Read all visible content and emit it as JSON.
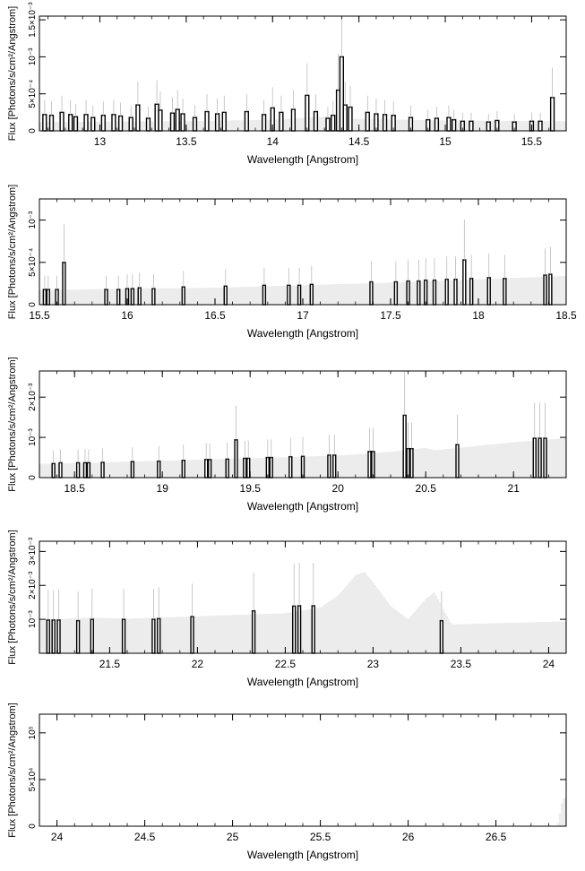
{
  "figure": {
    "xlabel": "Wavelength [Angstrom]",
    "ylabel": "Flux [Photons/s/cm²/Angstrom]"
  },
  "chart_data": [
    {
      "type": "bar",
      "xlabel": "Wavelength [Angstrom]",
      "ylabel": "Flux [Photons/s/cm²/Angstrom]",
      "xlim": [
        12.65,
        15.7
      ],
      "ylim": [
        0,
        0.00155
      ],
      "x_ticks": [
        {
          "v": 13,
          "label": "13"
        },
        {
          "v": 13.5,
          "label": "13.5"
        },
        {
          "v": 14,
          "label": "14"
        },
        {
          "v": 14.5,
          "label": "14.5"
        },
        {
          "v": 15,
          "label": "15"
        },
        {
          "v": 15.5,
          "label": "15.5"
        }
      ],
      "y_ticks": [
        {
          "v": 0,
          "label": "0"
        },
        {
          "v": 0.0005,
          "label": "5×10⁻⁴"
        },
        {
          "v": 0.001,
          "label": "10⁻³"
        },
        {
          "v": 0.0015,
          "label": "1.5×10⁻³"
        }
      ],
      "model": {
        "name": "model",
        "x": [
          12.65,
          13.5,
          14.0,
          14.3,
          14.5,
          15.0,
          15.7
        ],
        "y": [
          0.00012,
          0.00013,
          0.00015,
          0.00019,
          0.00016,
          0.00014,
          0.00013
        ]
      },
      "data": {
        "name": "data",
        "bin_width": 0.02,
        "x": [
          12.68,
          12.72,
          12.78,
          12.83,
          12.86,
          12.92,
          12.96,
          13.02,
          13.08,
          13.12,
          13.18,
          13.22,
          13.28,
          13.33,
          13.35,
          13.42,
          13.45,
          13.48,
          13.55,
          13.62,
          13.68,
          13.72,
          13.85,
          13.95,
          14.0,
          14.05,
          14.12,
          14.2,
          14.25,
          14.32,
          14.35,
          14.38,
          14.4,
          14.42,
          14.45,
          14.55,
          14.6,
          14.65,
          14.7,
          14.8,
          14.9,
          14.95,
          15.02,
          15.05,
          15.1,
          15.15,
          15.25,
          15.3,
          15.4,
          15.5,
          15.55,
          15.62
        ],
        "y": [
          0.00022,
          0.00021,
          0.00025,
          0.00022,
          0.00019,
          0.00022,
          0.00018,
          0.00021,
          0.00022,
          0.0002,
          0.00018,
          0.00035,
          0.00017,
          0.00036,
          0.00028,
          0.00024,
          0.00029,
          0.00023,
          0.00018,
          0.00026,
          0.00023,
          0.00025,
          0.00026,
          0.00022,
          0.00031,
          0.00025,
          0.00029,
          0.00048,
          0.00026,
          0.00017,
          0.00021,
          0.00055,
          0.001,
          0.00035,
          0.00032,
          0.00025,
          0.00023,
          0.00022,
          0.00021,
          0.00018,
          0.00015,
          0.00017,
          0.00018,
          0.00015,
          0.00013,
          0.00013,
          0.00012,
          0.00014,
          0.00012,
          0.00013,
          0.00013,
          0.00045
        ]
      }
    },
    {
      "type": "bar",
      "xlabel": "Wavelength [Angstrom]",
      "ylabel": "Flux [Photons/s/cm²/Angstrom]",
      "xlim": [
        15.5,
        18.5
      ],
      "ylim": [
        0,
        0.00125
      ],
      "x_ticks": [
        {
          "v": 15.5,
          "label": "15.5"
        },
        {
          "v": 16,
          "label": "16"
        },
        {
          "v": 16.5,
          "label": "16.5"
        },
        {
          "v": 17,
          "label": "17"
        },
        {
          "v": 17.5,
          "label": "17.5"
        },
        {
          "v": 18,
          "label": "18"
        },
        {
          "v": 18.5,
          "label": "18.5"
        }
      ],
      "y_ticks": [
        {
          "v": 0,
          "label": "0"
        },
        {
          "v": 0.0005,
          "label": "5×10⁻⁴"
        },
        {
          "v": 0.001,
          "label": "10⁻³"
        }
      ],
      "model": {
        "name": "model",
        "x": [
          15.5,
          16.0,
          16.5,
          17.0,
          17.5,
          18.0,
          18.5
        ],
        "y": [
          0.00017,
          0.00019,
          0.0002,
          0.00023,
          0.00026,
          0.0003,
          0.00034
        ]
      },
      "data": {
        "name": "data",
        "bin_width": 0.015,
        "x": [
          15.53,
          15.55,
          15.6,
          15.64,
          15.88,
          15.95,
          16.0,
          16.03,
          16.07,
          16.15,
          16.32,
          16.56,
          16.78,
          16.92,
          16.98,
          17.05,
          17.39,
          17.53,
          17.6,
          17.66,
          17.7,
          17.75,
          17.82,
          17.87,
          17.92,
          17.96,
          18.06,
          18.15,
          18.38,
          18.41
        ],
        "y": [
          0.00018,
          0.00018,
          0.00018,
          0.0005,
          0.00018,
          0.00018,
          0.00019,
          0.00019,
          0.0002,
          0.00019,
          0.00021,
          0.00022,
          0.00023,
          0.00023,
          0.00023,
          0.00024,
          0.00027,
          0.00027,
          0.00028,
          0.00028,
          0.00029,
          0.00029,
          0.0003,
          0.0003,
          0.00053,
          0.00031,
          0.00032,
          0.00031,
          0.00035,
          0.00036
        ]
      }
    },
    {
      "type": "bar",
      "xlabel": "Wavelength [Angstrom]",
      "ylabel": "Flux [Photons/s/cm²/Angstrom]",
      "xlim": [
        18.3,
        21.3
      ],
      "ylim": [
        0,
        0.00265
      ],
      "x_ticks": [
        {
          "v": 18.5,
          "label": "18.5"
        },
        {
          "v": 19,
          "label": "19"
        },
        {
          "v": 19.5,
          "label": "19.5"
        },
        {
          "v": 20,
          "label": "20"
        },
        {
          "v": 20.5,
          "label": "20.5"
        },
        {
          "v": 21,
          "label": "21"
        }
      ],
      "y_ticks": [
        {
          "v": 0,
          "label": "0"
        },
        {
          "v": 0.001,
          "label": "10⁻³"
        },
        {
          "v": 0.002,
          "label": "2×10⁻³"
        }
      ],
      "model": {
        "name": "model",
        "x": [
          18.3,
          18.5,
          19.0,
          19.5,
          20.0,
          20.3,
          20.5,
          20.55,
          21.0,
          21.3
        ],
        "y": [
          0.00034,
          0.00036,
          0.00042,
          0.00048,
          0.00055,
          0.00064,
          0.00074,
          0.00068,
          0.00088,
          0.00098
        ]
      },
      "data": {
        "name": "data",
        "bin_width": 0.015,
        "x": [
          18.38,
          18.42,
          18.52,
          18.56,
          18.58,
          18.66,
          18.83,
          18.98,
          19.12,
          19.25,
          19.27,
          19.37,
          19.42,
          19.47,
          19.49,
          19.6,
          19.62,
          19.73,
          19.8,
          19.95,
          19.98,
          20.18,
          20.2,
          20.38,
          20.4,
          20.42,
          20.68,
          21.12,
          21.15,
          21.18
        ],
        "y": [
          0.00035,
          0.00037,
          0.00037,
          0.00037,
          0.00037,
          0.00038,
          0.0004,
          0.00041,
          0.00043,
          0.00045,
          0.00045,
          0.00046,
          0.00094,
          0.00048,
          0.00048,
          0.0005,
          0.0005,
          0.00052,
          0.00053,
          0.00056,
          0.00056,
          0.00065,
          0.00065,
          0.00155,
          0.00072,
          0.00072,
          0.00082,
          0.00098,
          0.00098,
          0.00098
        ]
      }
    },
    {
      "type": "bar",
      "xlabel": "Wavelength [Angstrom]",
      "ylabel": "Flux [Photons/s/cm²/Angstrom]",
      "xlim": [
        21.1,
        24.1
      ],
      "ylim": [
        0,
        0.0033
      ],
      "x_ticks": [
        {
          "v": 21.5,
          "label": "21.5"
        },
        {
          "v": 22,
          "label": "22"
        },
        {
          "v": 22.5,
          "label": "22.5"
        },
        {
          "v": 23,
          "label": "23"
        },
        {
          "v": 23.5,
          "label": "23.5"
        },
        {
          "v": 24,
          "label": "24"
        }
      ],
      "y_ticks": [
        {
          "v": 0.001,
          "label": "10⁻³"
        },
        {
          "v": 0.002,
          "label": "2×10⁻³"
        },
        {
          "v": 0.003,
          "label": "3×10⁻³"
        }
      ],
      "model": {
        "name": "model",
        "x": [
          21.1,
          21.4,
          21.6,
          22.0,
          22.5,
          22.7,
          22.8,
          22.9,
          22.95,
          23.0,
          23.1,
          23.2,
          23.3,
          23.35,
          23.4,
          23.45,
          24.1
        ],
        "y": [
          0.00098,
          0.00105,
          0.00102,
          0.00109,
          0.00118,
          0.00135,
          0.0017,
          0.0023,
          0.0024,
          0.0021,
          0.0014,
          0.001,
          0.0016,
          0.0018,
          0.0013,
          0.00085,
          0.00094
        ]
      },
      "data": {
        "name": "data",
        "bin_width": 0.015,
        "x": [
          21.15,
          21.18,
          21.21,
          21.32,
          21.4,
          21.58,
          21.75,
          21.78,
          21.97,
          22.32,
          22.55,
          22.58,
          22.66,
          23.39
        ],
        "y": [
          0.00098,
          0.00098,
          0.00098,
          0.00096,
          0.001,
          0.001,
          0.001,
          0.00102,
          0.00108,
          0.00125,
          0.00139,
          0.0014,
          0.0014,
          0.00096
        ]
      }
    },
    {
      "type": "bar",
      "xlabel": "Wavelength [Angstrom]",
      "ylabel": "Flux [Photons/s/cm²/Angstrom]",
      "xlim": [
        23.9,
        26.9
      ],
      "ylim": [
        0,
        120000
      ],
      "x_ticks": [
        {
          "v": 24,
          "label": "24"
        },
        {
          "v": 24.5,
          "label": "24.5"
        },
        {
          "v": 25,
          "label": "25"
        },
        {
          "v": 25.5,
          "label": "25.5"
        },
        {
          "v": 26,
          "label": "26"
        },
        {
          "v": 26.5,
          "label": "26.5"
        }
      ],
      "y_ticks": [
        {
          "v": 0,
          "label": "0"
        },
        {
          "v": 50000,
          "label": "5×10⁴"
        },
        {
          "v": 100000,
          "label": "10⁵"
        }
      ],
      "model": {
        "name": "model",
        "x": [
          23.9,
          26.85,
          26.88,
          26.9
        ],
        "y": [
          0,
          0,
          30000,
          30000
        ]
      },
      "data": {
        "name": "data",
        "bin_width": 0.015,
        "x": [],
        "y": []
      }
    }
  ]
}
